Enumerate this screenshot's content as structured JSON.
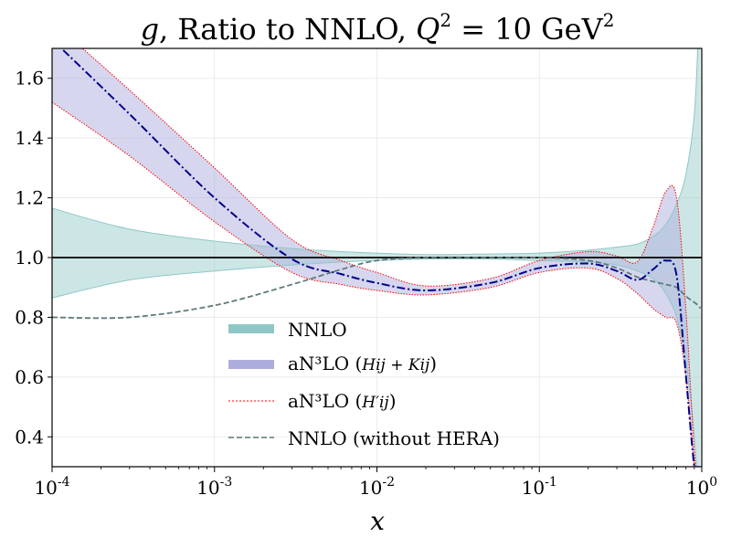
{
  "chart_data": {
    "type": "line",
    "title_parts": {
      "symbol": "g",
      "text": ", Ratio to NNLO, ",
      "q": "Q",
      "q_exp": "2",
      "eq": " = 10 GeV",
      "unit_exp": "2"
    },
    "xlabel": "x",
    "ylabel": "",
    "xscale": "log",
    "xlim": [
      0.0001,
      1
    ],
    "ylim": [
      0.3,
      1.7
    ],
    "x_ticks": [
      {
        "base": "10",
        "exp": "-4",
        "value": 0.0001
      },
      {
        "base": "10",
        "exp": "-3",
        "value": 0.001
      },
      {
        "base": "10",
        "exp": "-2",
        "value": 0.01
      },
      {
        "base": "10",
        "exp": "-1",
        "value": 0.1
      },
      {
        "base": "10",
        "exp": "0",
        "value": 1
      }
    ],
    "y_ticks": [
      "0.4",
      "0.6",
      "0.8",
      "1.0",
      "1.2",
      "1.4",
      "1.6"
    ],
    "grid": true,
    "reference_line": 1.0,
    "legend_position": "lower-center",
    "legend": [
      {
        "main": "NNLO",
        "sub": "",
        "style": "band",
        "color": "#8fc7c6"
      },
      {
        "main": "aN³LO (",
        "sub": "Hij + Kij",
        "close": ")",
        "style": "band",
        "color": "#adaddd"
      },
      {
        "main": "aN³LO (",
        "sub": "H′ij",
        "close": ")",
        "style": "dotted",
        "color": "#ff0000"
      },
      {
        "main": "NNLO (without HERA)",
        "sub": "",
        "style": "dashed",
        "color": "#5f7a7a"
      }
    ],
    "x": [
      0.0001,
      0.0003,
      0.001,
      0.003,
      0.006,
      0.01,
      0.02,
      0.05,
      0.1,
      0.2,
      0.3,
      0.4,
      0.5,
      0.6,
      0.7,
      0.8,
      0.9,
      0.95,
      0.98
    ],
    "series": [
      {
        "name": "NNLO band upper",
        "color": "#8fc7c6",
        "values": [
          1.165,
          1.095,
          1.055,
          1.03,
          1.02,
          1.015,
          1.01,
          1.012,
          1.015,
          1.025,
          1.035,
          1.045,
          1.07,
          1.11,
          1.18,
          1.28,
          1.48,
          1.75,
          2.1
        ]
      },
      {
        "name": "NNLO band lower",
        "color": "#8fc7c6",
        "values": [
          0.865,
          0.925,
          0.955,
          0.975,
          0.985,
          0.99,
          0.995,
          0.995,
          0.99,
          0.985,
          0.975,
          0.955,
          0.93,
          0.88,
          0.8,
          0.65,
          0.4,
          0.2,
          0.1
        ]
      },
      {
        "name": "aN3LO (Hij+Kij) upper",
        "color": "#adaddd",
        "values": [
          1.79,
          1.56,
          1.3,
          1.06,
          0.99,
          0.95,
          0.905,
          0.93,
          0.99,
          1.02,
          1.005,
          0.985,
          1.1,
          1.22,
          1.2,
          0.82,
          0.35,
          0.3,
          0.3
        ]
      },
      {
        "name": "aN3LO (Hij+Kij) lower",
        "color": "#adaddd",
        "values": [
          1.52,
          1.34,
          1.12,
          0.95,
          0.91,
          0.89,
          0.875,
          0.9,
          0.95,
          0.965,
          0.93,
          0.88,
          0.83,
          0.8,
          0.78,
          0.6,
          0.3,
          0.3,
          0.3
        ]
      },
      {
        "name": "aN3LO (Hij+Kij) central",
        "color": "#00008b",
        "values": [
          1.73,
          1.48,
          1.2,
          0.995,
          0.945,
          0.915,
          0.89,
          0.915,
          0.965,
          0.98,
          0.955,
          0.925,
          0.96,
          0.99,
          0.94,
          0.6,
          0.3,
          0.3,
          0.3
        ]
      },
      {
        "name": "NNLO (without HERA)",
        "color": "#5f7a7a",
        "values": [
          0.8,
          0.8,
          0.84,
          0.91,
          0.96,
          0.99,
          1.0,
          1.0,
          1.0,
          0.99,
          0.965,
          0.935,
          0.92,
          0.91,
          0.9,
          0.87,
          0.85,
          0.84,
          0.83
        ]
      }
    ]
  }
}
